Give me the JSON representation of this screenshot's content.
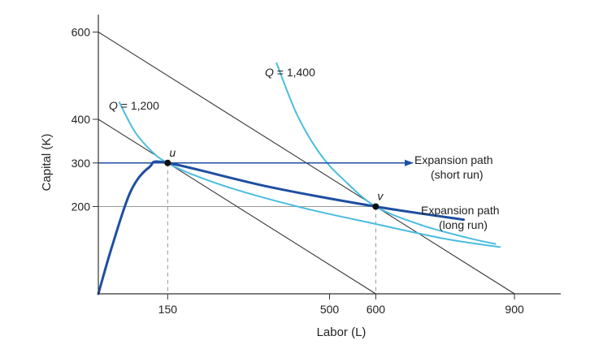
{
  "chart_data": {
    "type": "line",
    "title": "",
    "xlabel": "Labor (L)",
    "ylabel": "Capital (K)",
    "xlim": [
      0,
      1000
    ],
    "ylim": [
      0,
      640
    ],
    "xticks": [
      "150",
      "500",
      "600",
      "900"
    ],
    "yticks": [
      "200",
      "300",
      "400",
      "600"
    ],
    "xtick_values": [
      150,
      500,
      600,
      900
    ],
    "ytick_values": [
      200,
      300,
      400,
      600
    ],
    "points": [
      {
        "label": "u",
        "x": 150,
        "y": 300
      },
      {
        "label": "v",
        "x": 600,
        "y": 200
      }
    ],
    "isocost_lines": [
      {
        "x": [
          0,
          600
        ],
        "y": [
          400,
          0
        ]
      },
      {
        "x": [
          0,
          900
        ],
        "y": [
          600,
          0
        ]
      }
    ],
    "isoquants": [
      {
        "label": "Q = 1,200",
        "x": [
          45,
          80,
          120,
          150,
          200,
          300,
          450,
          600,
          750,
          870
        ],
        "y": [
          440,
          370,
          322,
          300,
          275,
          238,
          195,
          160,
          126,
          107
        ]
      },
      {
        "label": "Q = 1,400",
        "x": [
          385,
          430,
          480,
          530,
          600,
          700,
          800,
          860
        ],
        "y": [
          530,
          410,
          320,
          262,
          200,
          157,
          128,
          114
        ]
      }
    ],
    "expansion_paths": [
      {
        "label": "Expansion path (short run)",
        "x": [
          0,
          680
        ],
        "y": [
          300,
          300
        ]
      },
      {
        "label": "Expansion path (long run)",
        "x": [
          0,
          30,
          70,
          110,
          150,
          370,
          600,
          790
        ],
        "y": [
          0,
          110,
          235,
          290,
          300,
          245,
          200,
          170
        ]
      }
    ],
    "annotations": {
      "q1200_prefix": "Q",
      "q1200_suffix": " = 1,200",
      "q1400_prefix": "Q",
      "q1400_suffix": " = 1,400",
      "short_run_line1": "Expansion path",
      "short_run_line2": "(short run)",
      "long_run_line1": "Expansion path",
      "long_run_line2": "(long run)"
    },
    "colors": {
      "isoquant": "#4bbde0",
      "expansion": "#1f4fa0",
      "isocost": "#333333",
      "axis": "#333333",
      "guide": "#999999"
    },
    "grid": false
  }
}
